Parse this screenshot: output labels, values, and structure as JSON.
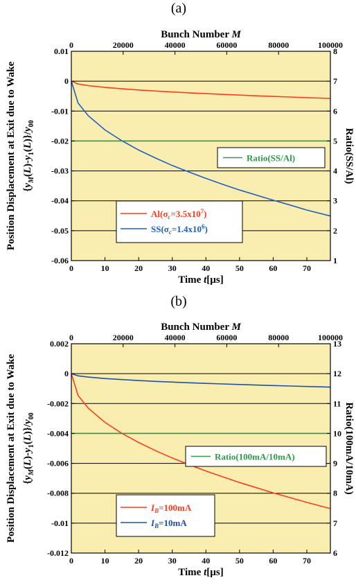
{
  "chart_data": [
    {
      "panel_label": "(a)",
      "type": "line",
      "bottom_axis": {
        "label_parts": [
          "Time ",
          "t",
          "[µs]"
        ],
        "range": [
          0,
          77
        ],
        "ticks": [
          0,
          10,
          20,
          30,
          40,
          50,
          60,
          70
        ]
      },
      "top_axis": {
        "label_parts": [
          "Bunch Number ",
          "M"
        ],
        "range": [
          0,
          100000
        ],
        "ticks": [
          "0",
          "20000",
          "40000",
          "60000",
          "80000",
          "100000"
        ]
      },
      "left_axis": {
        "label_lines": [
          "Position Displacement at Exit due to Wake",
          "{yM(L)-y1(L)}/y00"
        ],
        "range": [
          -0.06,
          0.01
        ],
        "ticks": [
          "0.01",
          "0",
          "-0.01",
          "-0.02",
          "-0.03",
          "-0.04",
          "-0.05",
          "-0.06"
        ]
      },
      "right_axis": {
        "label": "Ratio(SS/Al)",
        "range": [
          1,
          8
        ],
        "ticks": [
          "8",
          "7",
          "6",
          "5",
          "4",
          "3",
          "2",
          "1"
        ]
      },
      "background_color": "#f9eeb0",
      "grid": "horizontal",
      "series": [
        {
          "name": "Al(σc=3.5x107)",
          "legend_parts": [
            "Al(σ",
            "c",
            "=3.5x10",
            "7",
            ")"
          ],
          "axis": "left",
          "color": "#ff3b1f",
          "x": [
            0,
            2,
            5,
            10,
            15,
            20,
            25,
            30,
            35,
            40,
            45,
            50,
            55,
            60,
            65,
            70,
            77
          ],
          "y": [
            0,
            -0.00093,
            -0.00147,
            -0.00208,
            -0.00255,
            -0.00294,
            -0.00329,
            -0.0036,
            -0.00389,
            -0.00416,
            -0.00441,
            -0.00465,
            -0.00488,
            -0.00509,
            -0.0053,
            -0.0055,
            -0.00577
          ]
        },
        {
          "name": "SS(σc=1.4x106)",
          "legend_parts": [
            "SS(σ",
            "c",
            "=1.4x10",
            "6",
            ")"
          ],
          "axis": "left",
          "color": "#1f5fbf",
          "x": [
            0,
            2,
            5,
            10,
            15,
            20,
            25,
            30,
            35,
            40,
            45,
            50,
            55,
            60,
            65,
            70,
            77
          ],
          "y": [
            0,
            -0.0073,
            -0.0115,
            -0.0163,
            -0.0199,
            -0.023,
            -0.0257,
            -0.0282,
            -0.0304,
            -0.0325,
            -0.0345,
            -0.0364,
            -0.0381,
            -0.0398,
            -0.0414,
            -0.0431,
            -0.0451
          ]
        },
        {
          "name": "Ratio(SS/Al)",
          "legend_parts": [
            "Ratio(SS/Al)"
          ],
          "axis": "right",
          "color": "#2e9a4a",
          "x": [
            0,
            77
          ],
          "y": [
            5,
            5
          ]
        }
      ],
      "legend_main_order": [
        0,
        1
      ],
      "legend_ratio_index": 2
    },
    {
      "panel_label": "(b)",
      "type": "line",
      "bottom_axis": {
        "label_parts": [
          "Time ",
          "t",
          "[µs]"
        ],
        "range": [
          0,
          77
        ],
        "ticks": [
          0,
          10,
          20,
          30,
          40,
          50,
          60,
          70
        ]
      },
      "top_axis": {
        "label_parts": [
          "Bunch Number ",
          "M"
        ],
        "range": [
          0,
          100000
        ],
        "ticks": [
          "0",
          "20000",
          "40000",
          "60000",
          "80000",
          "100000"
        ]
      },
      "left_axis": {
        "label_lines": [
          "Position Displacement at Exit due to Wake",
          "{yM(L)-y1(L)}/y00"
        ],
        "range": [
          -0.012,
          0.002
        ],
        "ticks": [
          "0.002",
          "0",
          "-0.002",
          "-0.004",
          "-0.006",
          "-0.008",
          "-0.01",
          "-0.012"
        ]
      },
      "right_axis": {
        "label": "Ratio(100mA/10mA)",
        "range": [
          6,
          13
        ],
        "ticks": [
          "13",
          "12",
          "11",
          "10",
          "9",
          "8",
          "7",
          "6"
        ]
      },
      "background_color": "#f9eeb0",
      "grid": "horizontal",
      "series": [
        {
          "name": "IB=100mA",
          "legend_parts": [
            "I",
            "B",
            "=100mA"
          ],
          "axis": "left",
          "color": "#ff3b1f",
          "x": [
            0,
            2,
            5,
            10,
            15,
            20,
            25,
            30,
            35,
            40,
            45,
            50,
            55,
            60,
            65,
            70,
            77
          ],
          "y": [
            0,
            -0.00146,
            -0.0023,
            -0.00326,
            -0.00399,
            -0.0046,
            -0.00515,
            -0.00564,
            -0.00609,
            -0.00651,
            -0.0069,
            -0.00728,
            -0.00763,
            -0.00797,
            -0.00829,
            -0.00861,
            -0.00903
          ]
        },
        {
          "name": "IB=10mA",
          "legend_parts": [
            "I",
            "B",
            "=10mA"
          ],
          "axis": "left",
          "color": "#1f4fa8",
          "x": [
            0,
            2,
            5,
            10,
            15,
            20,
            25,
            30,
            35,
            40,
            45,
            50,
            55,
            60,
            65,
            70,
            77
          ],
          "y": [
            0,
            -0.000146,
            -0.00023,
            -0.000326,
            -0.000399,
            -0.00046,
            -0.000515,
            -0.000564,
            -0.000609,
            -0.000651,
            -0.00069,
            -0.000728,
            -0.000763,
            -0.000797,
            -0.000829,
            -0.000861,
            -0.000903
          ]
        },
        {
          "name": "Ratio(100mA/10mA)",
          "legend_parts": [
            "Ratio(100mA/10mA)"
          ],
          "axis": "right",
          "color": "#2e9a4a",
          "x": [
            0,
            77
          ],
          "y": [
            10,
            10
          ]
        }
      ],
      "legend_main_order": [
        0,
        1
      ],
      "legend_ratio_index": 2
    }
  ]
}
